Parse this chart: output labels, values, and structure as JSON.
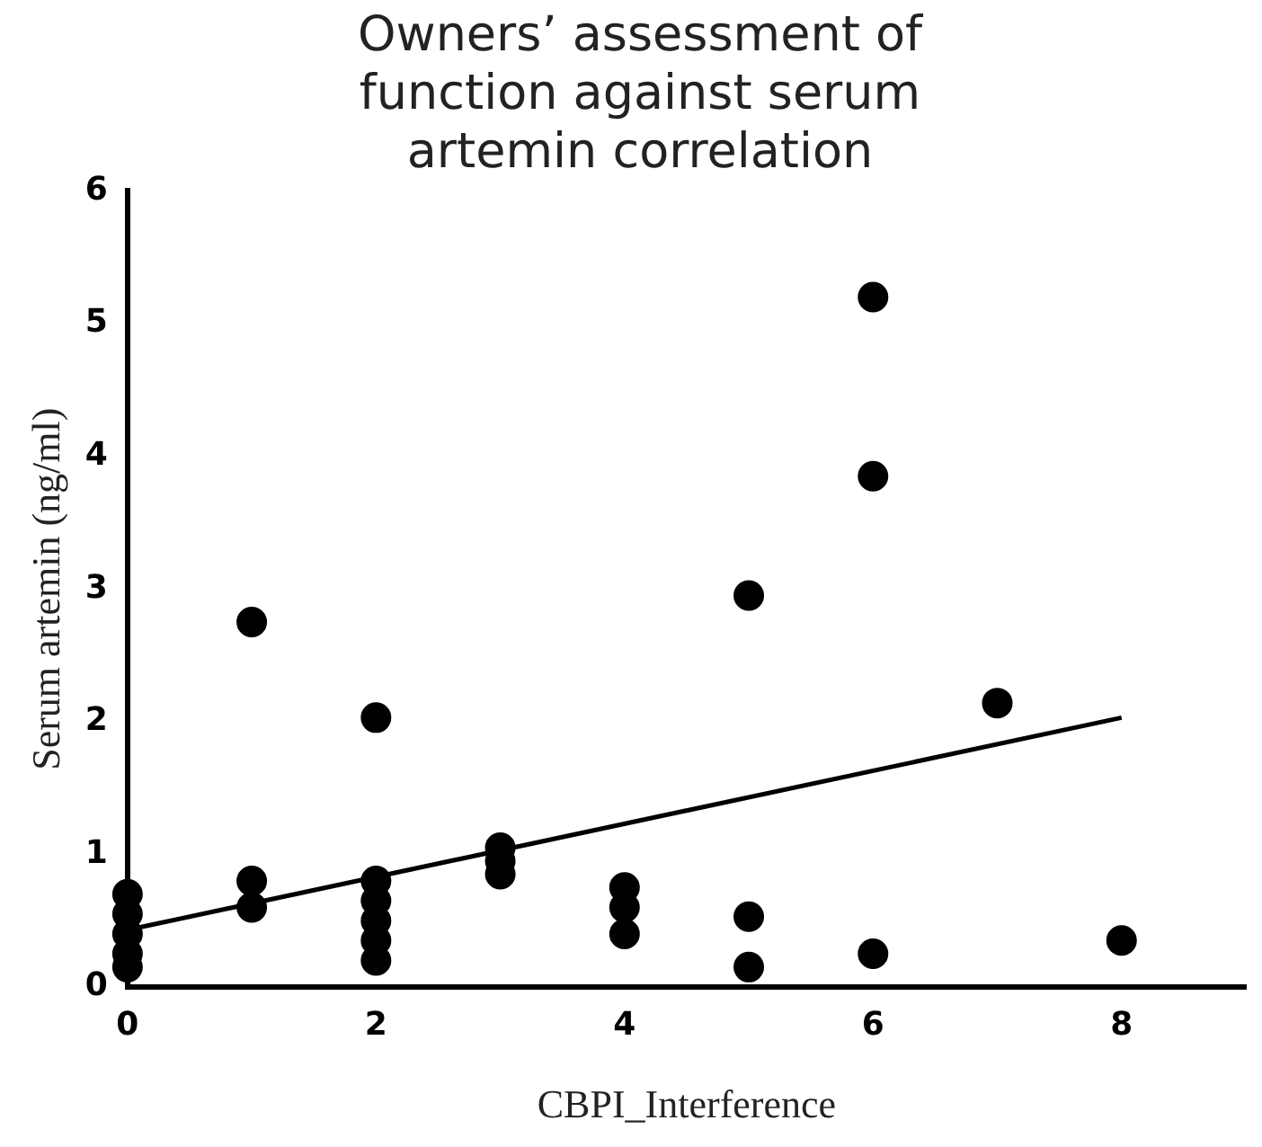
{
  "chart_data": {
    "type": "scatter",
    "title": [
      "Owners’ assessment of",
      "function against serum",
      "artemin correlation"
    ],
    "xlabel": "CBPI_Interference",
    "ylabel": "Serum artemin (ng/ml)",
    "series": [
      {
        "color": "#000000",
        "x": [
          0,
          0,
          0,
          0,
          0,
          1,
          1,
          1,
          2,
          2,
          2,
          2,
          2,
          2,
          3,
          3,
          3,
          4,
          4,
          4,
          5,
          5,
          5,
          6,
          6,
          6,
          7,
          8
        ],
        "values": [
          0.7,
          0.55,
          0.4,
          0.25,
          0.15,
          2.75,
          0.8,
          0.6,
          2.03,
          0.8,
          0.65,
          0.5,
          0.35,
          0.2,
          1.05,
          0.95,
          0.85,
          0.75,
          0.6,
          0.4,
          2.95,
          0.53,
          0.15,
          5.2,
          3.85,
          0.25,
          2.14,
          0.35
        ]
      },
      {
        "type": "line",
        "marker": "none",
        "color": "#000000",
        "x": [
          0,
          8
        ],
        "values": [
          0.43,
          2.03
        ]
      }
    ],
    "xlim": [
      0,
      9
    ],
    "xticks": [
      0,
      2,
      4,
      6,
      8
    ],
    "ylim": [
      0,
      6
    ],
    "yticks": [
      0,
      1,
      2,
      3,
      4,
      5,
      6
    ],
    "grid": false,
    "legend": false,
    "marker": "circle"
  }
}
